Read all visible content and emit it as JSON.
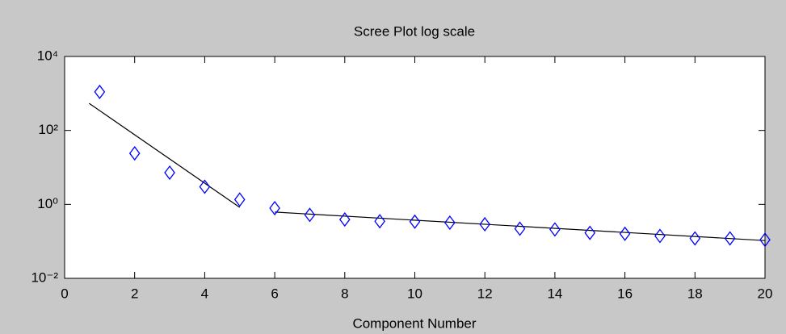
{
  "chart_data": {
    "type": "scatter",
    "title": "Scree Plot log scale",
    "x_label": "Component Number",
    "series": [
      {
        "marker": "diamond",
        "color": "#0000ff",
        "x": [
          1,
          2,
          3,
          4,
          5,
          6,
          7,
          8,
          9,
          10,
          11,
          12,
          13,
          14,
          15,
          16,
          17,
          18,
          19,
          20
        ],
        "values": [
          1100,
          24,
          7.2,
          3.0,
          1.35,
          0.79,
          0.52,
          0.39,
          0.35,
          0.34,
          0.32,
          0.29,
          0.22,
          0.21,
          0.17,
          0.16,
          0.14,
          0.12,
          0.12,
          0.11
        ]
      }
    ],
    "fit_lines": [
      {
        "color": "#000000",
        "x": [
          0.7,
          5
        ],
        "values": [
          540,
          0.83
        ]
      },
      {
        "color": "#000000",
        "x": [
          6,
          20
        ],
        "values": [
          0.62,
          0.105
        ]
      }
    ],
    "ylog": true,
    "xlim": [
      0,
      20
    ],
    "xticks": [
      0,
      2,
      4,
      6,
      8,
      10,
      12,
      14,
      16,
      18,
      20
    ],
    "ylim": [
      0.01,
      10000
    ],
    "yticks": [
      {
        "value": 0.01,
        "label": "10⁻²"
      },
      {
        "value": 1,
        "label": "10⁰"
      },
      {
        "value": 100,
        "label": "10²"
      },
      {
        "value": 10000,
        "label": "10⁴"
      }
    ]
  }
}
